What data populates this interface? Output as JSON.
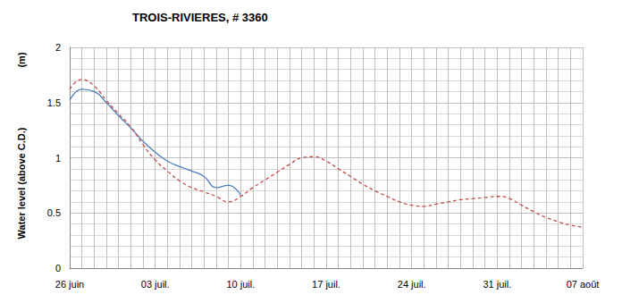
{
  "chart_data": {
    "type": "line",
    "title": "TROIS-RIVIERES, # 3360",
    "ylabel": "Water level (above C.D.)",
    "yunit": "(m)",
    "categories": [
      "26 juin",
      null,
      null,
      null,
      null,
      null,
      null,
      "03 juil.",
      null,
      null,
      null,
      null,
      null,
      null,
      "10 juil.",
      null,
      null,
      null,
      null,
      null,
      null,
      "17 juil.",
      null,
      null,
      null,
      null,
      null,
      null,
      "24 juil.",
      null,
      null,
      null,
      null,
      null,
      null,
      "31 juil.",
      null,
      null,
      null,
      null,
      null,
      null,
      "07 août"
    ],
    "series": [
      {
        "color": "#4a7ebb",
        "line_style": "solid",
        "values": [
          1.52,
          1.62,
          1.6,
          1.5,
          1.38,
          1.27,
          1.15,
          1.05,
          0.97,
          0.92,
          0.88,
          0.83,
          0.73,
          0.75,
          0.66,
          null,
          null,
          null,
          null,
          null,
          null,
          null,
          null,
          null,
          null,
          null,
          null,
          null,
          null,
          null,
          null,
          null,
          null,
          null,
          null,
          null,
          null,
          null,
          null,
          null,
          null,
          null,
          null
        ]
      },
      {
        "color": "#c0504d",
        "line_style": "dashed",
        "values": [
          1.62,
          1.71,
          1.65,
          1.52,
          1.4,
          1.28,
          1.12,
          0.98,
          0.88,
          0.79,
          0.73,
          0.69,
          0.65,
          0.6,
          0.65,
          0.73,
          0.8,
          0.87,
          0.94,
          1.0,
          1.01,
          0.97,
          0.9,
          0.83,
          0.76,
          0.7,
          0.65,
          0.6,
          0.57,
          0.56,
          0.58,
          0.6,
          0.62,
          0.63,
          0.64,
          0.65,
          0.63,
          0.57,
          0.51,
          0.46,
          0.42,
          0.39,
          0.37
        ]
      }
    ],
    "ylim": [
      0,
      2
    ],
    "yticks": [
      0,
      0.5,
      1,
      1.5,
      2
    ],
    "grid": true
  }
}
